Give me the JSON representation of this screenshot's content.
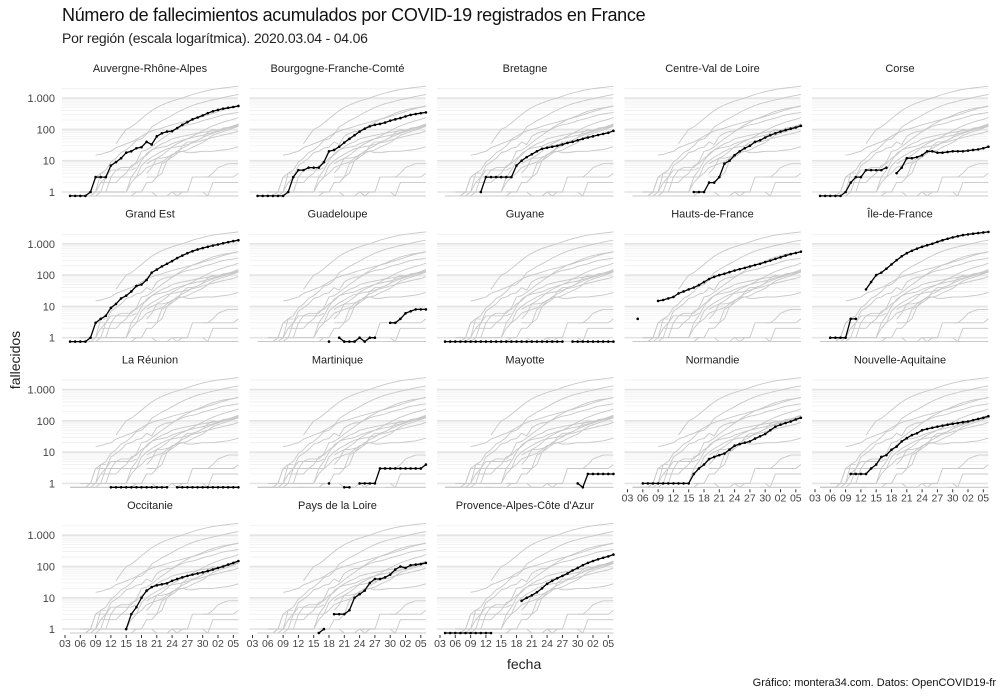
{
  "chart_data": {
    "type": "line",
    "title": "Número de fallecimientos acumulados por COVID-19 registrados en France",
    "subtitle": "Por región (escala logarítmica). 2020.03.04 - 04.06",
    "xlabel": "fecha",
    "ylabel": "fallecidos",
    "caption": "Gráfico: montera34.com. Datos: OpenCOVID19-fr",
    "y_scale": "log10",
    "ylim": [
      0.75,
      2500
    ],
    "y_ticks": [
      1,
      10,
      100,
      1000
    ],
    "y_tick_labels": [
      "1",
      "10",
      "100",
      "1.000"
    ],
    "x_dates": [
      "03-04",
      "03-05",
      "03-06",
      "03-07",
      "03-08",
      "03-09",
      "03-10",
      "03-11",
      "03-12",
      "03-13",
      "03-14",
      "03-15",
      "03-16",
      "03-17",
      "03-18",
      "03-19",
      "03-20",
      "03-21",
      "03-22",
      "03-23",
      "03-24",
      "03-25",
      "03-26",
      "03-27",
      "03-28",
      "03-29",
      "03-30",
      "03-31",
      "04-01",
      "04-02",
      "04-03",
      "04-04",
      "04-05",
      "04-06"
    ],
    "x_ticks_day_index_from_mar3": [
      0,
      3,
      6,
      9,
      12,
      15,
      18,
      21,
      24,
      27,
      30,
      33
    ],
    "x_tick_labels": [
      "03",
      "06",
      "09",
      "12",
      "15",
      "18",
      "21",
      "24",
      "27",
      "30",
      "02",
      "05"
    ],
    "grid": true,
    "colors": {
      "highlight": "#000000",
      "background_series": "#c8c8c8",
      "grid": "#ebebeb"
    },
    "series": [
      {
        "name": "Auvergne-Rhône-Alpes",
        "values": [
          0,
          0,
          0,
          0,
          1,
          3,
          3,
          3,
          7,
          9,
          12,
          18,
          20,
          25,
          27,
          40,
          33,
          60,
          75,
          85,
          88,
          110,
          140,
          170,
          210,
          240,
          280,
          330,
          380,
          420,
          460,
          490,
          520,
          560
        ]
      },
      {
        "name": "Bourgogne-Franche-Comté",
        "values": [
          0,
          0,
          0,
          0,
          0,
          0,
          1,
          3,
          5,
          5,
          6,
          6,
          6,
          9,
          20,
          22,
          28,
          38,
          50,
          65,
          85,
          105,
          125,
          140,
          150,
          165,
          190,
          210,
          230,
          260,
          290,
          310,
          330,
          350
        ]
      },
      {
        "name": "Bretagne",
        "values": [
          null,
          null,
          null,
          null,
          null,
          null,
          null,
          1,
          3,
          3,
          3,
          3,
          3,
          3,
          7,
          10,
          13,
          16,
          20,
          24,
          26,
          28,
          30,
          33,
          37,
          40,
          45,
          50,
          55,
          60,
          66,
          72,
          78,
          90
        ]
      },
      {
        "name": "Centre-Val de Loire",
        "values": [
          null,
          null,
          null,
          null,
          null,
          null,
          null,
          null,
          null,
          null,
          null,
          null,
          1,
          1,
          1,
          2,
          2,
          3,
          8,
          10,
          15,
          20,
          25,
          30,
          40,
          45,
          55,
          65,
          75,
          85,
          95,
          105,
          115,
          130
        ]
      },
      {
        "name": "Corse",
        "values": [
          0,
          0,
          0,
          0,
          0,
          1,
          2,
          3,
          3,
          5,
          5,
          5,
          5,
          6,
          null,
          4,
          6,
          12,
          12,
          13,
          15,
          20,
          20,
          18,
          18,
          19,
          20,
          20,
          20,
          21,
          22,
          23,
          25,
          28
        ]
      },
      {
        "name": "Grand Est",
        "values": [
          0,
          0,
          0,
          0,
          1,
          3,
          4,
          5,
          9,
          12,
          18,
          22,
          30,
          45,
          50,
          70,
          120,
          150,
          190,
          230,
          280,
          350,
          420,
          500,
          580,
          660,
          730,
          800,
          880,
          950,
          1040,
          1130,
          1220,
          1300
        ]
      },
      {
        "name": "Guadeloupe",
        "values": [
          null,
          null,
          null,
          null,
          null,
          null,
          null,
          null,
          null,
          null,
          null,
          null,
          null,
          null,
          0,
          null,
          1,
          0,
          0,
          0,
          1,
          0,
          1,
          1,
          null,
          null,
          3,
          3,
          4,
          6,
          7,
          8,
          8,
          8
        ]
      },
      {
        "name": "Guyane",
        "values": [
          0,
          0,
          0,
          0,
          0,
          0,
          0,
          0,
          0,
          0,
          0,
          0,
          0,
          0,
          0,
          0,
          0,
          0,
          0,
          0,
          0,
          0,
          0,
          0,
          null,
          0,
          0,
          0,
          0,
          0,
          0,
          0,
          0,
          0
        ]
      },
      {
        "name": "Hauts-de-France",
        "values": [
          null,
          4,
          null,
          null,
          null,
          15,
          16,
          18,
          20,
          26,
          30,
          35,
          40,
          48,
          60,
          75,
          88,
          100,
          110,
          125,
          140,
          155,
          170,
          190,
          210,
          230,
          260,
          290,
          330,
          370,
          420,
          470,
          510,
          560
        ]
      },
      {
        "name": "Île-de-France",
        "values": [
          null,
          null,
          1,
          1,
          1,
          1,
          4,
          4,
          null,
          35,
          60,
          100,
          120,
          160,
          220,
          300,
          400,
          500,
          600,
          700,
          800,
          900,
          1000,
          1150,
          1300,
          1450,
          1600,
          1750,
          1900,
          2000,
          2100,
          2200,
          2300,
          2400
        ]
      },
      {
        "name": "La Réunion",
        "values": [
          null,
          null,
          null,
          null,
          null,
          null,
          null,
          null,
          0,
          0,
          0,
          0,
          0,
          0,
          0,
          0,
          0,
          0,
          0,
          0,
          null,
          0,
          0,
          0,
          0,
          0,
          0,
          0,
          0,
          0,
          0,
          0,
          0,
          0
        ]
      },
      {
        "name": "Martinique",
        "values": [
          null,
          null,
          null,
          null,
          null,
          null,
          null,
          null,
          null,
          null,
          null,
          null,
          null,
          null,
          1,
          null,
          null,
          0,
          0,
          null,
          1,
          1,
          1,
          1,
          3,
          3,
          3,
          3,
          3,
          3,
          3,
          3,
          3,
          4
        ]
      },
      {
        "name": "Mayotte",
        "values": [
          null,
          null,
          null,
          null,
          null,
          null,
          null,
          null,
          null,
          null,
          null,
          null,
          null,
          null,
          null,
          null,
          null,
          null,
          null,
          null,
          null,
          null,
          null,
          null,
          null,
          null,
          1,
          0,
          2,
          2,
          2,
          2,
          2,
          2
        ]
      },
      {
        "name": "Normandie",
        "values": [
          null,
          null,
          1,
          1,
          1,
          1,
          1,
          1,
          1,
          1,
          1,
          1,
          2,
          3,
          4,
          6,
          7,
          8,
          9,
          12,
          16,
          18,
          20,
          22,
          27,
          32,
          38,
          50,
          65,
          75,
          85,
          95,
          110,
          125
        ]
      },
      {
        "name": "Nouvelle-Aquitaine",
        "values": [
          null,
          null,
          null,
          null,
          null,
          null,
          2,
          2,
          2,
          2,
          3,
          4,
          7,
          8,
          12,
          15,
          22,
          28,
          35,
          40,
          50,
          55,
          60,
          65,
          70,
          75,
          80,
          85,
          90,
          95,
          105,
          115,
          125,
          140
        ]
      },
      {
        "name": "Occitanie",
        "values": [
          null,
          null,
          null,
          null,
          null,
          null,
          null,
          null,
          null,
          null,
          null,
          1,
          3,
          5,
          10,
          17,
          22,
          25,
          27,
          29,
          35,
          40,
          45,
          50,
          55,
          60,
          65,
          72,
          80,
          90,
          100,
          115,
          130,
          150
        ]
      },
      {
        "name": "Pays de la Loire",
        "values": [
          null,
          null,
          null,
          null,
          null,
          null,
          null,
          null,
          null,
          null,
          null,
          null,
          0,
          1,
          null,
          3,
          3,
          3,
          4,
          10,
          13,
          17,
          30,
          40,
          40,
          45,
          55,
          80,
          100,
          90,
          110,
          115,
          120,
          130
        ]
      },
      {
        "name": "Provence-Alpes-Côte d'Azur",
        "values": [
          0,
          0,
          0,
          0,
          0,
          0,
          0,
          0,
          0,
          0,
          null,
          null,
          null,
          null,
          null,
          8,
          10,
          12,
          15,
          20,
          28,
          35,
          42,
          50,
          60,
          75,
          90,
          110,
          130,
          150,
          170,
          190,
          210,
          240
        ]
      }
    ]
  }
}
